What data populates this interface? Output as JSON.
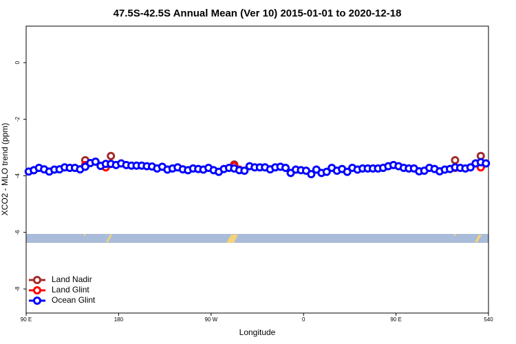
{
  "chart_data": {
    "type": "line",
    "title": "47.5S-42.5S Annual Mean (Ver 10)   2015-01-01 to 2020-12-18",
    "xlabel": "Longitude",
    "ylabel": "XCO2 - MLO trend (ppm)",
    "xlim": [
      90,
      540
    ],
    "ylim": [
      -8.85,
      1.29
    ],
    "xticks": [
      {
        "value": 90,
        "label": "90 E"
      },
      180,
      {
        "value": 270,
        "label": "90 W"
      },
      {
        "value": 360,
        "label": "0"
      },
      {
        "value": 450,
        "label": "90 E"
      },
      540
    ],
    "yticks": [
      0,
      -2,
      -4,
      -6,
      -8
    ],
    "legend": "bottom-left",
    "series": [
      {
        "name": "Land Nadir",
        "color": "#a52a2a",
        "x": [
          147.5,
          172.5,
          292.5,
          507.5,
          532.5
        ],
        "values": [
          -3.45,
          -3.3,
          -3.6,
          -3.45,
          -3.3
        ]
      },
      {
        "name": "Land Glint",
        "color": "#ff0000",
        "x": [
          147.5,
          167.5,
          292.5,
          297.5,
          507.5,
          532.5
        ],
        "values": [
          -3.62,
          -3.7,
          -3.65,
          -3.78,
          -3.72,
          -3.7
        ]
      },
      {
        "name": "Ocean Glint",
        "color": "#0000ff",
        "x": [
          92.5,
          97.5,
          102.5,
          107.5,
          112.5,
          117.5,
          122.5,
          127.5,
          132.5,
          137.5,
          142.5,
          147.5,
          152.5,
          157.5,
          162.5,
          167.5,
          172.5,
          177.5,
          182.5,
          187.5,
          192.5,
          197.5,
          202.5,
          207.5,
          212.5,
          217.5,
          222.5,
          227.5,
          232.5,
          237.5,
          242.5,
          247.5,
          252.5,
          257.5,
          262.5,
          267.5,
          272.5,
          277.5,
          282.5,
          287.5,
          292.5,
          297.5,
          302.5,
          307.5,
          312.5,
          317.5,
          322.5,
          327.5,
          332.5,
          337.5,
          342.5,
          347.5,
          352.5,
          357.5,
          362.5,
          367.5,
          372.5,
          377.5,
          382.5,
          387.5,
          392.5,
          397.5,
          402.5,
          407.5,
          412.5,
          417.5,
          422.5,
          427.5,
          432.5,
          437.5,
          442.5,
          447.5,
          452.5,
          457.5,
          462.5,
          467.5,
          472.5,
          477.5,
          482.5,
          487.5,
          492.5,
          497.5,
          502.5,
          507.5,
          512.5,
          517.5,
          522.5,
          527.5,
          532.5,
          537.5
        ],
        "values": [
          -3.85,
          -3.8,
          -3.72,
          -3.77,
          -3.85,
          -3.78,
          -3.77,
          -3.7,
          -3.72,
          -3.72,
          -3.77,
          -3.68,
          -3.55,
          -3.5,
          -3.65,
          -3.58,
          -3.58,
          -3.62,
          -3.56,
          -3.62,
          -3.64,
          -3.64,
          -3.64,
          -3.66,
          -3.67,
          -3.74,
          -3.68,
          -3.78,
          -3.74,
          -3.7,
          -3.77,
          -3.8,
          -3.74,
          -3.76,
          -3.78,
          -3.72,
          -3.8,
          -3.86,
          -3.76,
          -3.72,
          -3.74,
          -3.8,
          -3.82,
          -3.66,
          -3.7,
          -3.7,
          -3.7,
          -3.77,
          -3.7,
          -3.68,
          -3.72,
          -3.9,
          -3.78,
          -3.8,
          -3.82,
          -3.94,
          -3.78,
          -3.9,
          -3.86,
          -3.72,
          -3.82,
          -3.76,
          -3.86,
          -3.72,
          -3.78,
          -3.74,
          -3.74,
          -3.74,
          -3.74,
          -3.72,
          -3.66,
          -3.62,
          -3.66,
          -3.72,
          -3.74,
          -3.74,
          -3.84,
          -3.82,
          -3.72,
          -3.76,
          -3.84,
          -3.78,
          -3.76,
          -3.7,
          -3.72,
          -3.74,
          -3.7,
          -3.56,
          -3.52,
          -3.56
        ]
      }
    ]
  }
}
